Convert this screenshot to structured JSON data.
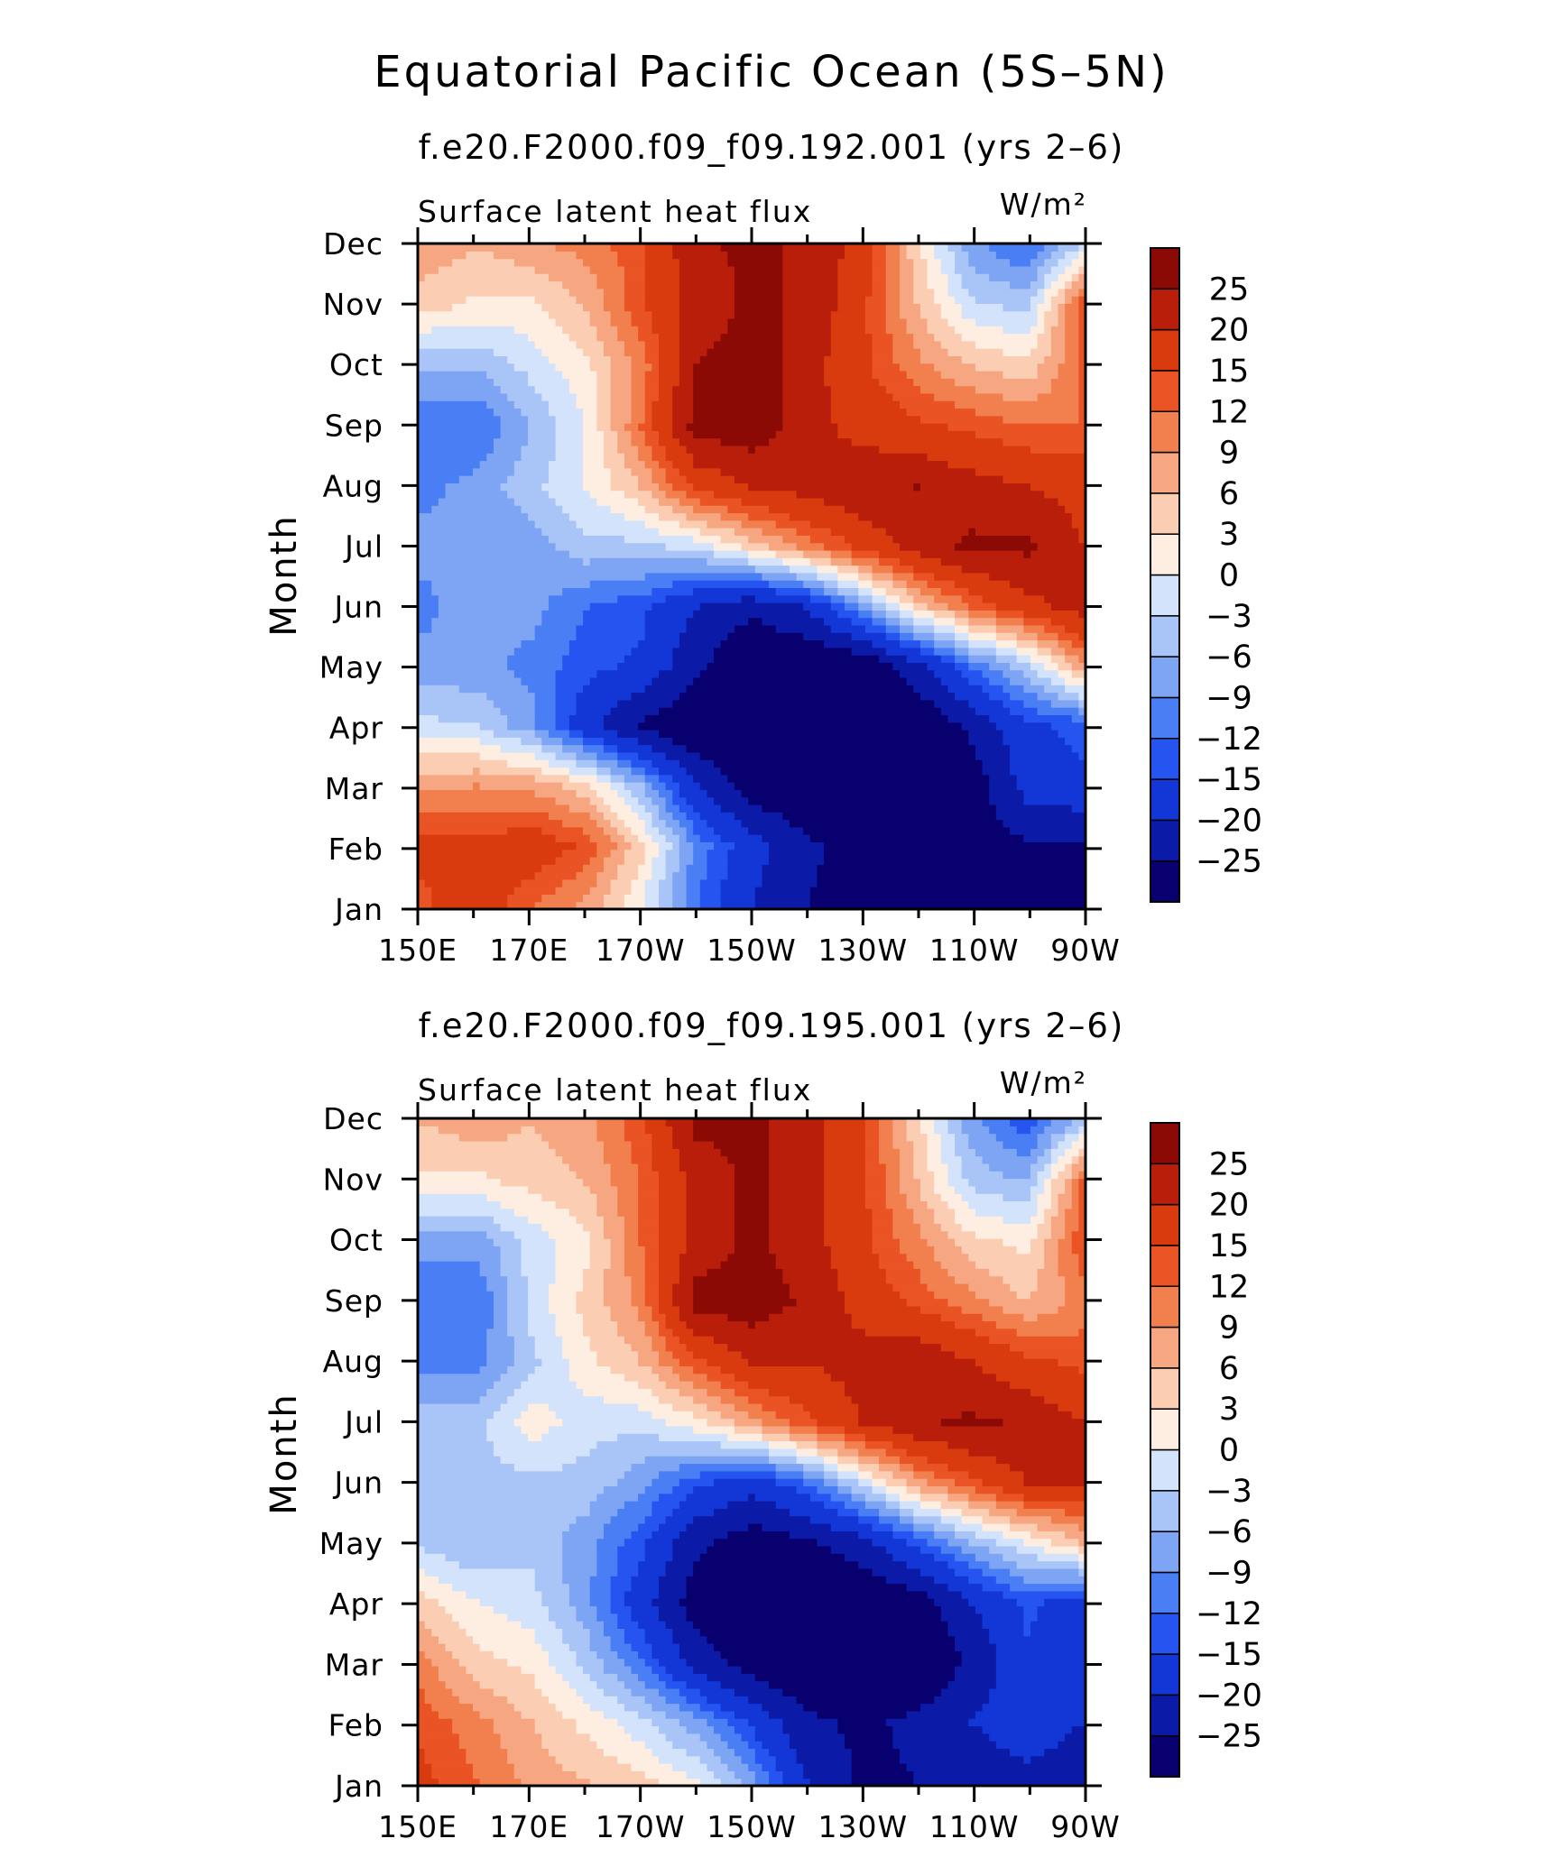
{
  "title": "Equatorial Pacific Ocean (5S–5N)",
  "colors": {
    "levels": [
      "#08006f",
      "#0c1aa8",
      "#1237d6",
      "#2554f0",
      "#4a7ef5",
      "#7ea4f4",
      "#a9c4f7",
      "#d2e3fb",
      "#fdeee1",
      "#fbcdb3",
      "#f7a682",
      "#f2804f",
      "#ea5324",
      "#d93b0f",
      "#b81e0a",
      "#8b0a05"
    ]
  },
  "chart_data": [
    {
      "type": "heatmap",
      "title": "f.e20.F2000.f09_f09.192.001 (yrs 2–6)",
      "variable": "Surface latent heat flux",
      "units": "W/m²",
      "xlabel": "",
      "ylabel": "Month",
      "x_ticks": [
        "150E",
        "170E",
        "170W",
        "150W",
        "130W",
        "110W",
        "90W"
      ],
      "x_values": [
        150,
        160,
        170,
        180,
        190,
        200,
        210,
        220,
        230,
        240,
        250,
        260,
        270
      ],
      "xlim": [
        150,
        270
      ],
      "y_ticks": [
        "Jan",
        "Feb",
        "Mar",
        "Apr",
        "May",
        "Jun",
        "Jul",
        "Aug",
        "Sep",
        "Oct",
        "Nov",
        "Dec"
      ],
      "colorbar_levels": [
        "25",
        "20",
        "15",
        "12",
        "9",
        "6",
        "3",
        "0",
        "−3",
        "−6",
        "−9",
        "−12",
        "−15",
        "−20",
        "−25"
      ],
      "values": [
        [
          14,
          18,
          12,
          8,
          0,
          -12,
          -20,
          -25,
          -28,
          -30,
          -30,
          -30,
          -30
        ],
        [
          16,
          16,
          18,
          14,
          4,
          -10,
          -18,
          -24,
          -27,
          -30,
          -28,
          -26,
          -26
        ],
        [
          8,
          9,
          8,
          4,
          -6,
          -20,
          -28,
          -30,
          -30,
          -30,
          -28,
          -18,
          -16
        ],
        [
          -2,
          -3,
          -8,
          -18,
          -26,
          -30,
          -30,
          -30,
          -30,
          -30,
          -24,
          -16,
          -14
        ],
        [
          -8,
          -8,
          -10,
          -14,
          -16,
          -24,
          -30,
          -30,
          -30,
          -22,
          -12,
          -4,
          8
        ],
        [
          -10,
          -7,
          -8,
          -12,
          -14,
          -20,
          -24,
          -20,
          -8,
          4,
          12,
          18,
          22
        ],
        [
          -8,
          -8,
          -8,
          -4,
          -4,
          -2,
          4,
          10,
          16,
          22,
          26,
          26,
          20
        ],
        [
          -10,
          -8,
          -4,
          0,
          6,
          16,
          20,
          22,
          24,
          25,
          22,
          20,
          18
        ],
        [
          -12,
          -12,
          -6,
          0,
          12,
          27,
          28,
          22,
          18,
          16,
          14,
          12,
          12
        ],
        [
          -6,
          -6,
          -2,
          2,
          10,
          25,
          28,
          22,
          16,
          10,
          6,
          4,
          12
        ],
        [
          4,
          2,
          2,
          6,
          14,
          22,
          26,
          24,
          16,
          6,
          -2,
          -4,
          14
        ],
        [
          8,
          6,
          8,
          10,
          14,
          24,
          26,
          24,
          18,
          4,
          -8,
          -12,
          -2
        ]
      ]
    },
    {
      "type": "heatmap",
      "title": "f.e20.F2000.f09_f09.195.001 (yrs 2–6)",
      "variable": "Surface latent heat flux",
      "units": "W/m²",
      "xlabel": "",
      "ylabel": "Month",
      "x_ticks": [
        "150E",
        "170E",
        "170W",
        "150W",
        "130W",
        "110W",
        "90W"
      ],
      "x_values": [
        150,
        160,
        170,
        180,
        190,
        200,
        210,
        220,
        230,
        240,
        250,
        260,
        270
      ],
      "xlim": [
        150,
        270
      ],
      "y_ticks": [
        "Jan",
        "Feb",
        "Mar",
        "Apr",
        "May",
        "Jun",
        "Jul",
        "Aug",
        "Sep",
        "Oct",
        "Nov",
        "Dec"
      ],
      "colorbar_levels": [
        "25",
        "20",
        "15",
        "12",
        "9",
        "6",
        "3",
        "0",
        "−3",
        "−6",
        "−9",
        "−12",
        "−15",
        "−20",
        "−25"
      ],
      "values": [
        [
          16,
          12,
          8,
          6,
          4,
          0,
          -8,
          -20,
          -26,
          -25,
          -24,
          -22,
          -24
        ],
        [
          14,
          10,
          6,
          2,
          -2,
          -8,
          -16,
          -24,
          -26,
          -24,
          -20,
          -16,
          -20
        ],
        [
          10,
          4,
          2,
          -4,
          -12,
          -22,
          -28,
          -30,
          -30,
          -30,
          -24,
          -16,
          -18
        ],
        [
          4,
          0,
          -2,
          -8,
          -18,
          -28,
          -30,
          -30,
          -30,
          -28,
          -20,
          -14,
          -18
        ],
        [
          -4,
          -6,
          -4,
          -8,
          -14,
          -24,
          -28,
          -26,
          -22,
          -14,
          -6,
          0,
          6
        ],
        [
          -6,
          -4,
          -4,
          -4,
          -8,
          -14,
          -18,
          -12,
          -2,
          8,
          14,
          20,
          20
        ],
        [
          -4,
          -4,
          2,
          -2,
          -2,
          2,
          8,
          14,
          20,
          24,
          26,
          24,
          20
        ],
        [
          -10,
          -10,
          -4,
          2,
          6,
          14,
          20,
          20,
          22,
          24,
          20,
          16,
          14
        ],
        [
          -12,
          -12,
          -2,
          4,
          10,
          27,
          28,
          24,
          18,
          14,
          10,
          6,
          10
        ],
        [
          -8,
          -8,
          -2,
          2,
          12,
          22,
          26,
          22,
          16,
          10,
          4,
          2,
          14
        ],
        [
          2,
          2,
          4,
          6,
          12,
          22,
          26,
          22,
          16,
          6,
          -4,
          -6,
          12
        ],
        [
          6,
          8,
          6,
          8,
          14,
          26,
          26,
          22,
          16,
          4,
          -8,
          -14,
          -4
        ]
      ]
    }
  ]
}
